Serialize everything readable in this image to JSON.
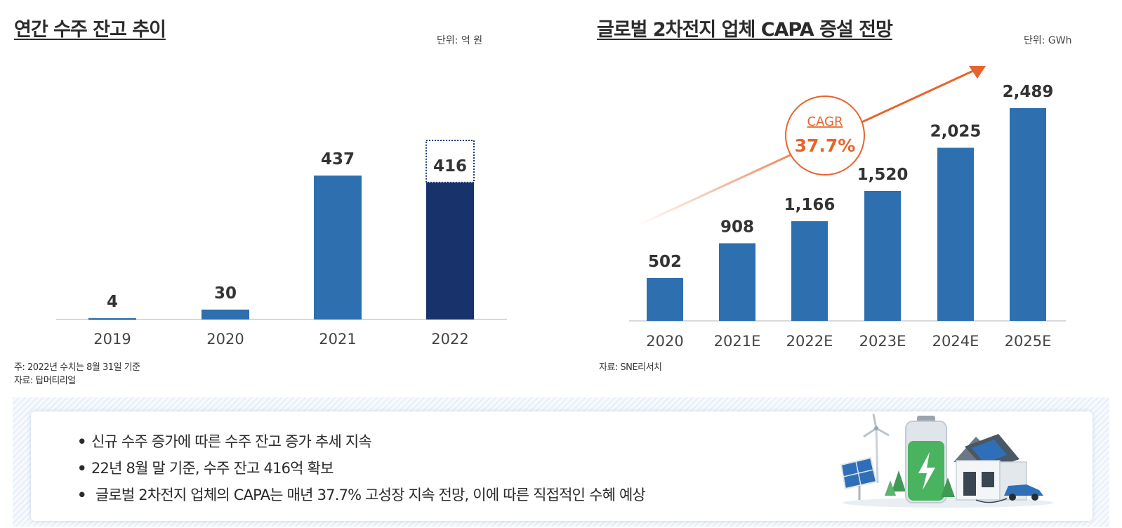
{
  "left_chart": {
    "title": "연간 수주 잔고 추이",
    "unit": "단위: 억 원",
    "notes": [
      "주: 2022년 수치는 8월 31일 기준",
      "자료: 탑머티리얼"
    ]
  },
  "right_chart": {
    "title": "글로벌 2차전지 업체 CAPA 증설 전망",
    "unit": "단위: GWh",
    "notes": [
      "자료: SNE리서치"
    ],
    "cagr_label": "CAGR",
    "cagr_value": "37.7%"
  },
  "chart_data": [
    {
      "type": "bar",
      "title": "연간 수주 잔고 추이",
      "unit": "단위: 억 원",
      "categories": [
        "2019",
        "2020",
        "2021",
        "2022"
      ],
      "values": [
        4,
        30,
        437,
        416
      ],
      "value_labels": [
        "4",
        "30",
        "437",
        "416"
      ],
      "projected_outline_value": 437,
      "colors": {
        "bar": "#2e6fb0",
        "highlight": "#18326b",
        "outline": "#1b3a7a"
      },
      "ylim": [
        0,
        480
      ]
    },
    {
      "type": "bar",
      "title": "글로벌 2차전지 업체 CAPA 증설 전망",
      "unit": "단위: GWh",
      "categories": [
        "2020",
        "2021E",
        "2022E",
        "2023E",
        "2024E",
        "2025E"
      ],
      "values": [
        502,
        908,
        1166,
        1520,
        2025,
        2489
      ],
      "value_labels": [
        "502",
        "908",
        "1,166",
        "1,520",
        "2,025",
        "2,489"
      ],
      "annotation": {
        "label": "CAGR",
        "value": "37.7%"
      },
      "colors": {
        "bar": "#2e6fb0",
        "accent": "#e8642b"
      },
      "ylim": [
        0,
        2800
      ]
    }
  ],
  "summary": {
    "bullets": [
      "신규 수주 증가에 따른 수주 잔고 증가 추세 지속",
      "22년 8월 말 기준, 수주 잔고 416억 확보",
      " 글로벌 2차전지 업체의 CAPA는 매년 37.7% 고성장 지속 전망, 이에 따른 직접적인 수혜 예상"
    ],
    "bullet_marker": "•",
    "illustration_icon": "battery-renewable-energy-icon"
  }
}
